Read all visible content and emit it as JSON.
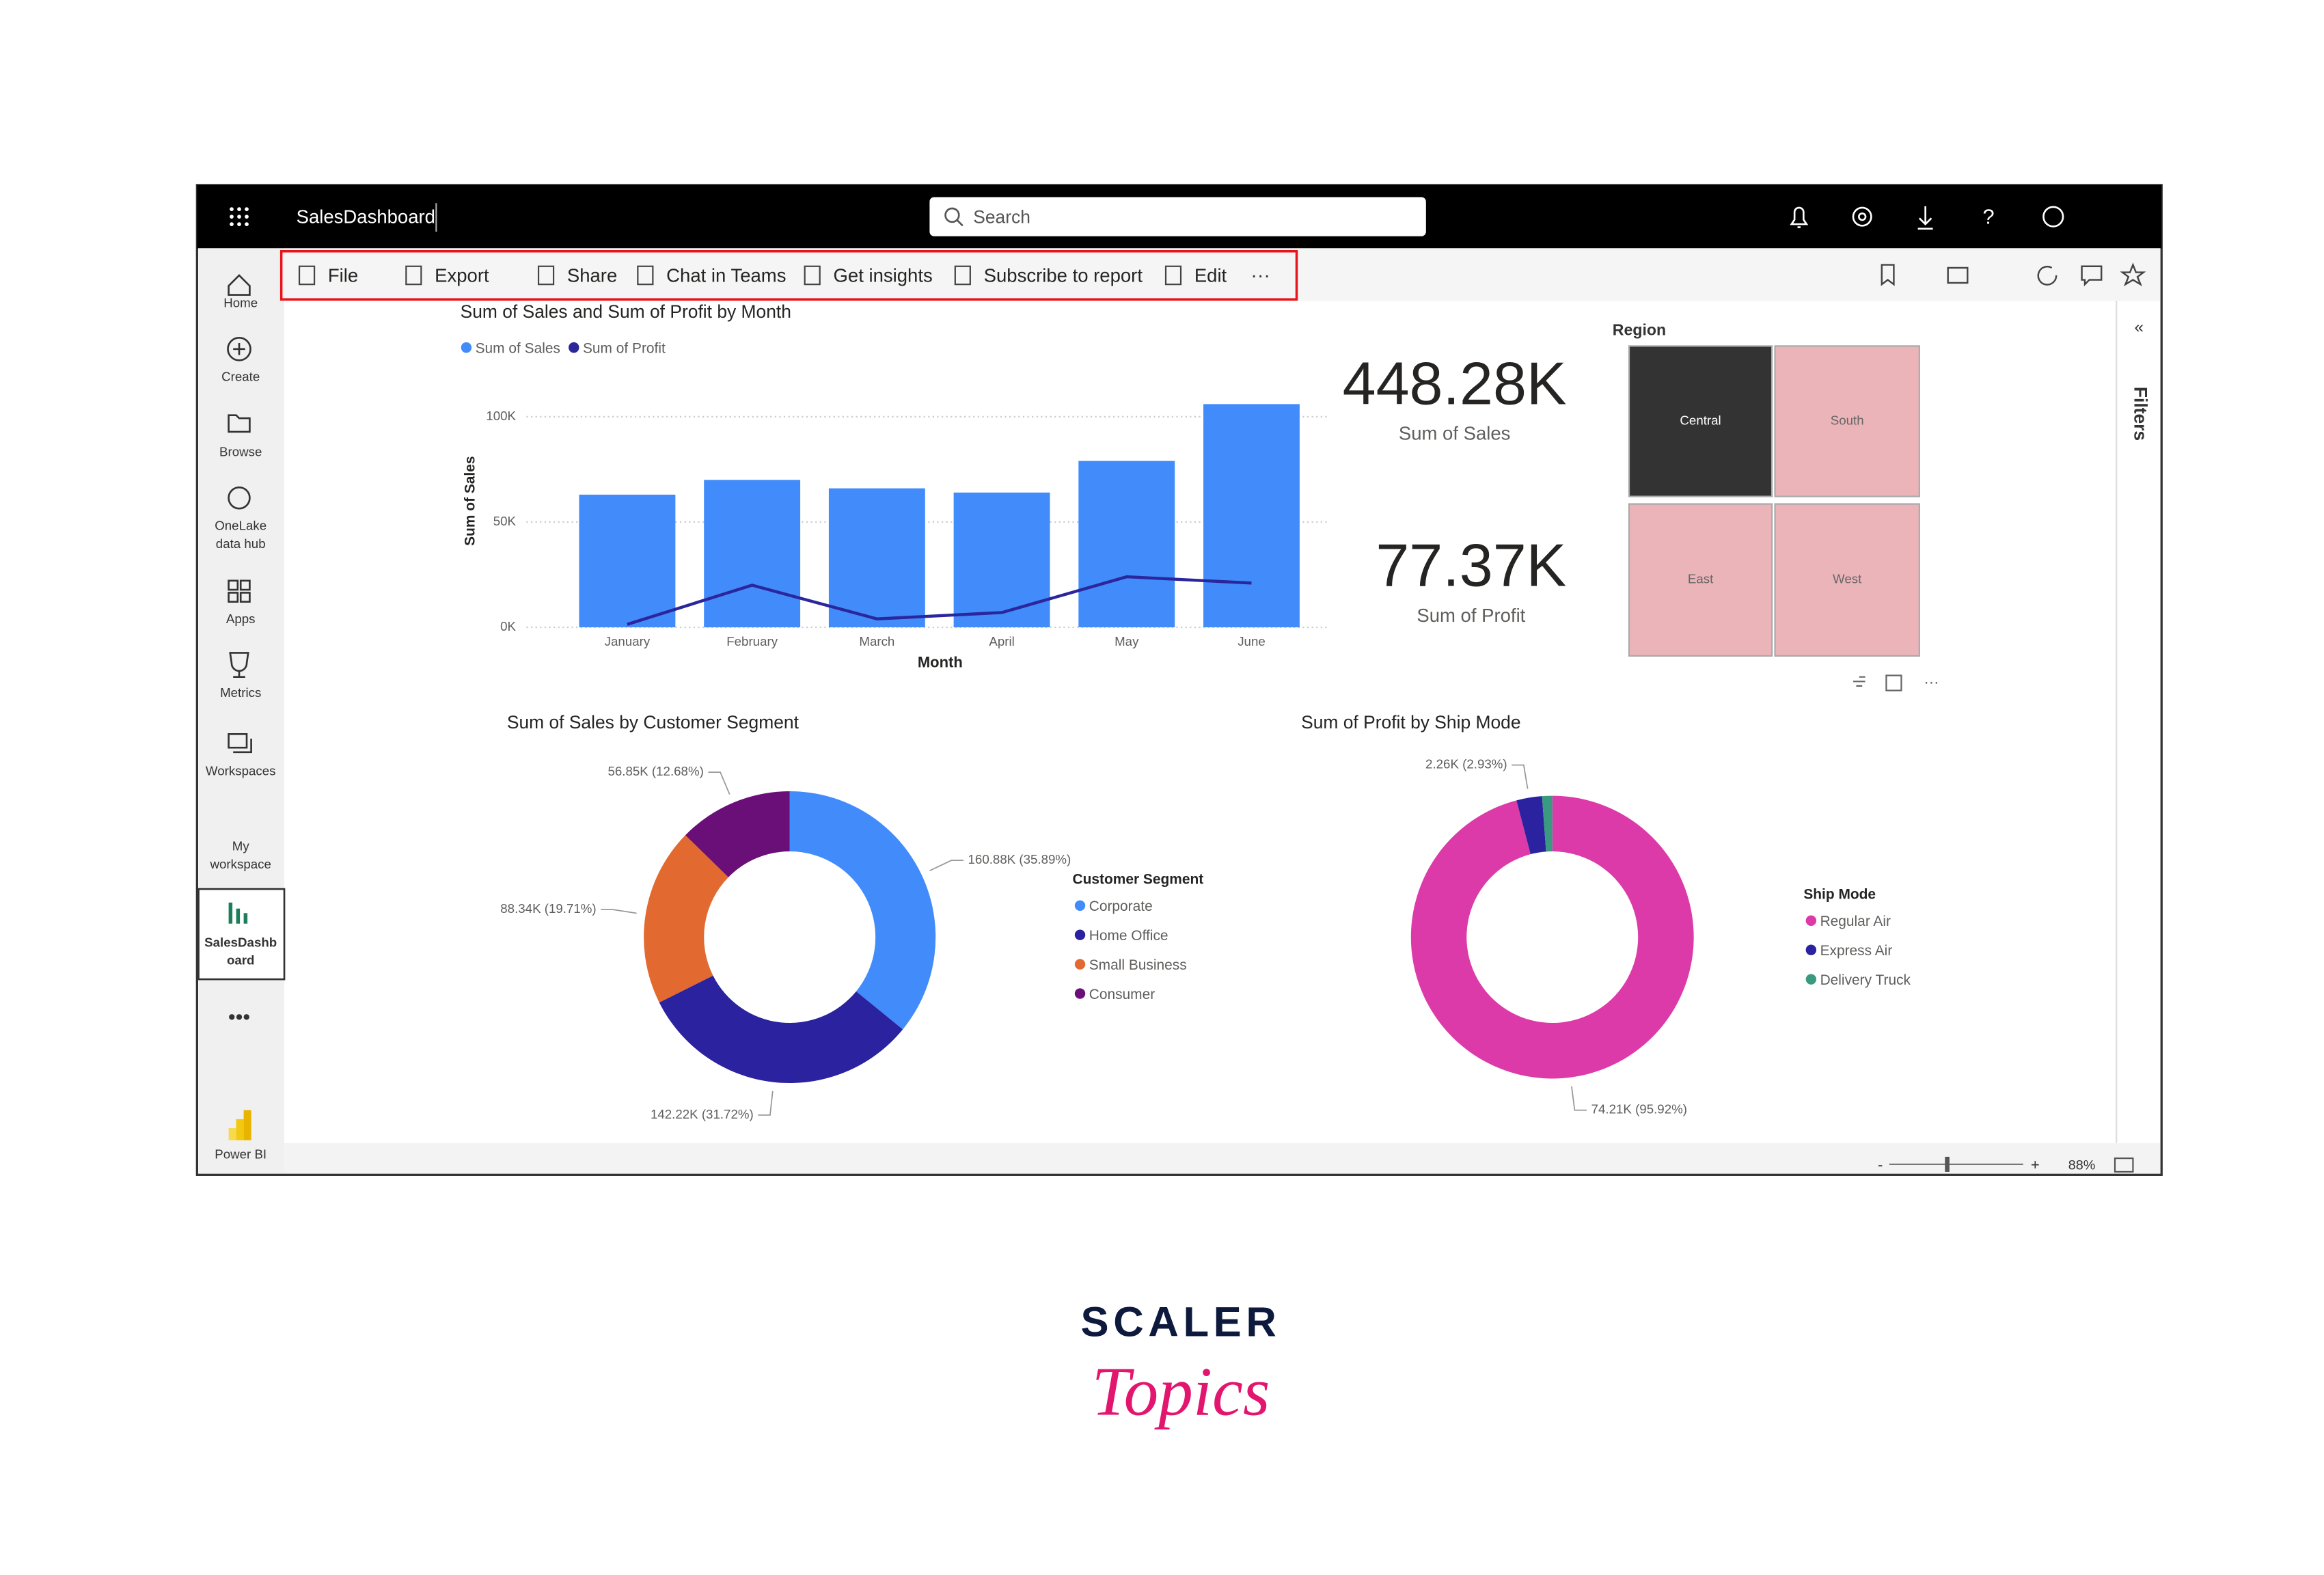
{
  "app_bar": {
    "dashboard_name": "SalesDashboard",
    "search_placeholder": "Search"
  },
  "toolbar": {
    "items": [
      "File",
      "Export",
      "Share",
      "Chat in Teams",
      "Get insights",
      "Subscribe to report",
      "Edit"
    ]
  },
  "nav": {
    "items": [
      {
        "lines": [
          "Home"
        ]
      },
      {
        "lines": [
          "Create"
        ]
      },
      {
        "lines": [
          "Browse"
        ]
      },
      {
        "lines": [
          "OneLake",
          "data hub"
        ]
      },
      {
        "lines": [
          "Apps"
        ]
      },
      {
        "lines": [
          "Metrics"
        ]
      },
      {
        "lines": [
          "Workspaces"
        ]
      },
      {
        "lines": [
          "My",
          "workspace"
        ]
      },
      {
        "lines": [
          "SalesDashb",
          "oard"
        ]
      },
      {
        "lines": [
          "Power BI"
        ]
      }
    ]
  },
  "filters_pane": {
    "label": "Filters"
  },
  "cards": [
    {
      "value": "448.28K",
      "label": "Sum of Sales"
    },
    {
      "value": "77.37K",
      "label": "Sum of Profit"
    }
  ],
  "treemap": {
    "title": "Region",
    "tiles": [
      "Central",
      "South",
      "East",
      "West"
    ]
  },
  "status_bar": {
    "zoom": "88%"
  },
  "brand": {
    "name": "SCALER",
    "tagline": "Topics"
  },
  "chart_data": [
    {
      "type": "bar",
      "title": "Sum of Sales and Sum of Profit by Month",
      "x_label": "Month",
      "y_label": "Sum of Sales",
      "categories": [
        "January",
        "February",
        "March",
        "April",
        "May",
        "June"
      ],
      "series": [
        {
          "name": "Sum of Sales",
          "color": "#418bfb",
          "values": [
            63000,
            70000,
            66000,
            64000,
            79000,
            106000
          ]
        },
        {
          "name": "Sum of Profit",
          "color": "#2b269c",
          "type": "line",
          "values": [
            1400,
            20000,
            4000,
            7000,
            24000,
            21000
          ]
        }
      ],
      "ylim": [
        0,
        115000
      ],
      "yticks": [
        {
          "value": 0,
          "label": "0K"
        },
        {
          "value": 50000,
          "label": "50K"
        },
        {
          "value": 100000,
          "label": "100K"
        }
      ],
      "grid": true
    },
    {
      "type": "donut",
      "title": "Sum of Sales by Customer Segment",
      "legend_title": "Customer Segment",
      "categories": [
        "Corporate",
        "Home Office",
        "Small Business",
        "Consumer"
      ],
      "values": [
        160880,
        142220,
        88340,
        56850
      ],
      "value_labels": [
        "160.88K (35.89%)",
        "142.22K (31.72%)",
        "88.34K (19.71%)",
        "56.85K (12.68%)"
      ],
      "colors": [
        "#418bfb",
        "#2a229e",
        "#e2692f",
        "#6a0e78"
      ]
    },
    {
      "type": "donut",
      "title": "Sum of Profit by Ship Mode",
      "legend_title": "Ship Mode",
      "categories": [
        "Regular Air",
        "Express Air",
        "Delivery Truck"
      ],
      "values": [
        74210,
        2260,
        900
      ],
      "value_labels": [
        "74.21K (95.92%)",
        "2.26K (2.93%)",
        null
      ],
      "colors": [
        "#dd3aa9",
        "#2a229e",
        "#3a9a80"
      ]
    }
  ]
}
